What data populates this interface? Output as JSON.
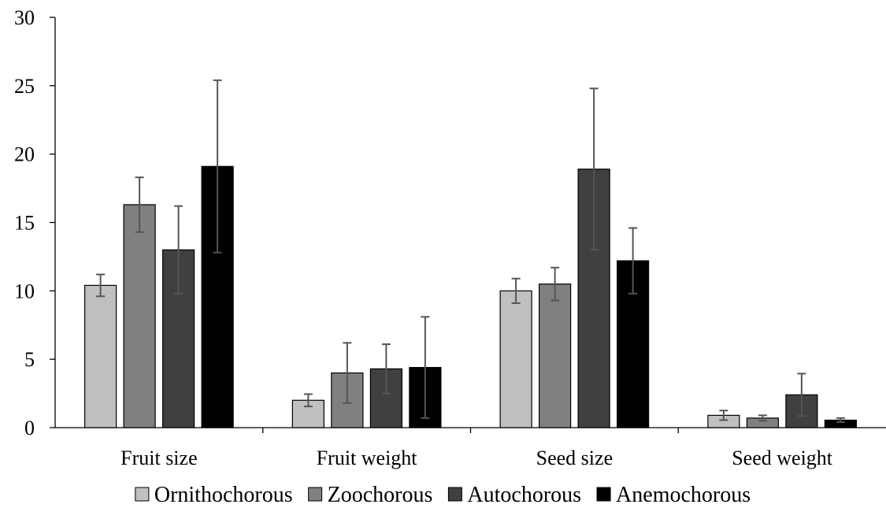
{
  "chart_data": {
    "type": "bar",
    "title": "",
    "xlabel": "",
    "ylabel": "",
    "ylim": [
      0,
      30
    ],
    "yticks": [
      0,
      5,
      10,
      15,
      20,
      25,
      30
    ],
    "grid": false,
    "legend_position": "bottom",
    "categories": [
      "Fruit size",
      "Fruit weight",
      "Seed size",
      "Seed weight"
    ],
    "series": [
      {
        "name": "Ornithochorous",
        "color": "#c0c0c0",
        "values": [
          10.4,
          2.0,
          10.0,
          0.9
        ],
        "errors": [
          0.8,
          0.45,
          0.9,
          0.35
        ]
      },
      {
        "name": "Zoochorous",
        "color": "#808080",
        "values": [
          16.3,
          4.0,
          10.5,
          0.7
        ],
        "errors": [
          2.0,
          2.2,
          1.2,
          0.2
        ]
      },
      {
        "name": "Autochorous",
        "color": "#404040",
        "values": [
          13.0,
          4.3,
          18.9,
          2.4
        ],
        "errors": [
          3.2,
          1.8,
          5.9,
          1.55
        ]
      },
      {
        "name": "Anemochorous",
        "color": "#000000",
        "values": [
          19.1,
          4.4,
          12.2,
          0.55
        ],
        "errors": [
          6.3,
          3.7,
          2.4,
          0.15
        ]
      }
    ]
  }
}
